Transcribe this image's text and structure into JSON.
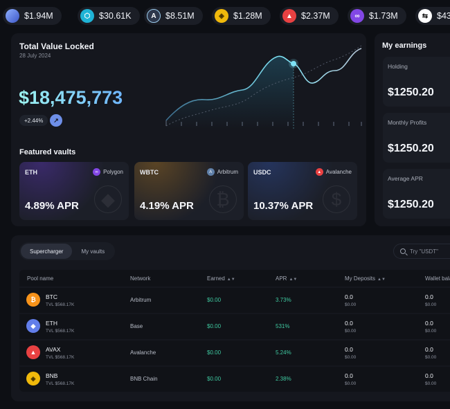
{
  "ticker": [
    {
      "icon": "globe-token-icon",
      "value": "$1.94M",
      "color": "#5b79d9"
    },
    {
      "icon": "hexagon-token-icon",
      "value": "$30.61K",
      "color": "#1fb3d6"
    },
    {
      "icon": "arbitrum-token-icon",
      "value": "$8.51M",
      "color": "#2d374b"
    },
    {
      "icon": "bnb-token-icon",
      "value": "$1.28M",
      "color": "#f0b90b"
    },
    {
      "icon": "avalanche-token-icon",
      "value": "$2.37M",
      "color": "#e84142"
    },
    {
      "icon": "polygon-token-icon",
      "value": "$1.73M",
      "color": "#8247e5"
    },
    {
      "icon": "swap-token-icon",
      "value": "$43",
      "color": "#ffffff"
    }
  ],
  "tvl": {
    "title": "Total Value Locked",
    "date": "28 July 2024",
    "value": "$18,475,773",
    "change": "+2.44%",
    "arrow": "↗"
  },
  "featured": {
    "title": "Featured vaults",
    "vaults": [
      {
        "symbol": "ETH",
        "network": "Polygon",
        "network_icon": "polygon-icon",
        "apr": "4.89% APR",
        "color": "#8247e5",
        "glow": "#3a2a6a"
      },
      {
        "symbol": "WBTC",
        "network": "Arbitrum",
        "network_icon": "arbitrum-icon",
        "apr": "4.19% APR",
        "color": "#5f7fa8",
        "glow": "#5a4425"
      },
      {
        "symbol": "USDC",
        "network": "Avalanche",
        "network_icon": "avalanche-icon",
        "apr": "10.37% APR",
        "color": "#e84142",
        "glow": "#25345c"
      }
    ]
  },
  "earnings": {
    "title": "My earnings",
    "cards": [
      {
        "label": "Holding",
        "value": "$1250.20"
      },
      {
        "label": "Monthly Profits",
        "value": "$1250.20"
      },
      {
        "label": "Average APR",
        "value": "$1250.20"
      }
    ]
  },
  "table": {
    "tabs": [
      "Supercharger",
      "My vaults"
    ],
    "search_placeholder": "Try \"USDT\"",
    "headers": {
      "pool": "Pool name",
      "network": "Network",
      "earned": "Earned",
      "apr": "APR",
      "deposits": "My Deposits",
      "wallet": "Wallet bala"
    },
    "rows": [
      {
        "symbol": "BTC",
        "tvl": "TVL $568.17K",
        "network": "Arbitrum",
        "earned": "$0.00",
        "apr": "3.73%",
        "dep": "0.0",
        "dep_usd": "$0.00",
        "wal": "0.0",
        "wal_usd": "$0.00",
        "coin_color": "#f7931a",
        "coin_glyph": "₿",
        "coin_icon": "bitcoin-icon"
      },
      {
        "symbol": "ETH",
        "tvl": "TVL $568.17K",
        "network": "Base",
        "earned": "$0.00",
        "apr": "531%",
        "dep": "0.0",
        "dep_usd": "$0.00",
        "wal": "0.0",
        "wal_usd": "$0.00",
        "coin_color": "#627eea",
        "coin_glyph": "◆",
        "coin_icon": "ethereum-icon"
      },
      {
        "symbol": "AVAX",
        "tvl": "TVL $568.17K",
        "network": "Avalanche",
        "earned": "$0.00",
        "apr": "5.24%",
        "dep": "0.0",
        "dep_usd": "$0.00",
        "wal": "0.0",
        "wal_usd": "$0.00",
        "coin_color": "#e84142",
        "coin_glyph": "▲",
        "coin_icon": "avalanche-icon"
      },
      {
        "symbol": "BNB",
        "tvl": "TVL $568.17K",
        "network": "BNB Chain",
        "earned": "$0.00",
        "apr": "2.38%",
        "dep": "0.0",
        "dep_usd": "$0.00",
        "wal": "0.0",
        "wal_usd": "$0.00",
        "coin_color": "#f0b90b",
        "coin_glyph": "◈",
        "coin_icon": "bnb-icon"
      }
    ]
  },
  "colors": {
    "accent_cyan": "#7fe3f5",
    "positive": "#3fc9a0"
  }
}
